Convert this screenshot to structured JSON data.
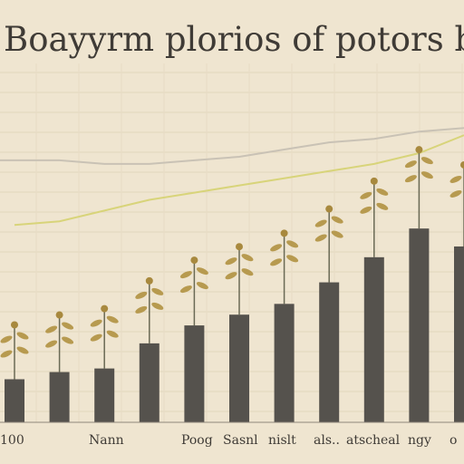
{
  "chart_data": {
    "type": "bar",
    "title": "Boayyrm plorios of potors baty",
    "ylim": [
      0,
      100
    ],
    "grid": true,
    "values": [
      12,
      14,
      15,
      22,
      27,
      30,
      33,
      39,
      46,
      54,
      49
    ],
    "line_series": [
      {
        "name": "",
        "values": [
          73,
          73,
          72,
          72,
          73,
          74,
          76,
          78,
          79,
          81,
          82
        ]
      },
      {
        "name": "",
        "values": [
          55,
          56,
          59,
          62,
          64,
          66,
          68,
          70,
          72,
          75,
          80
        ]
      }
    ],
    "tick_labels": [
      "100",
      "Nann",
      "Poog",
      "Sasnl",
      "nislt",
      "als..",
      "atscheal",
      "ngy",
      "o"
    ],
    "colors": {
      "bar": "#55524d",
      "line_grey": "#c9c2b5",
      "line_yellow": "#d8d47a",
      "stem": "#6a6a55",
      "leaf": "#b79a4f",
      "background": "#efe5d0"
    }
  }
}
